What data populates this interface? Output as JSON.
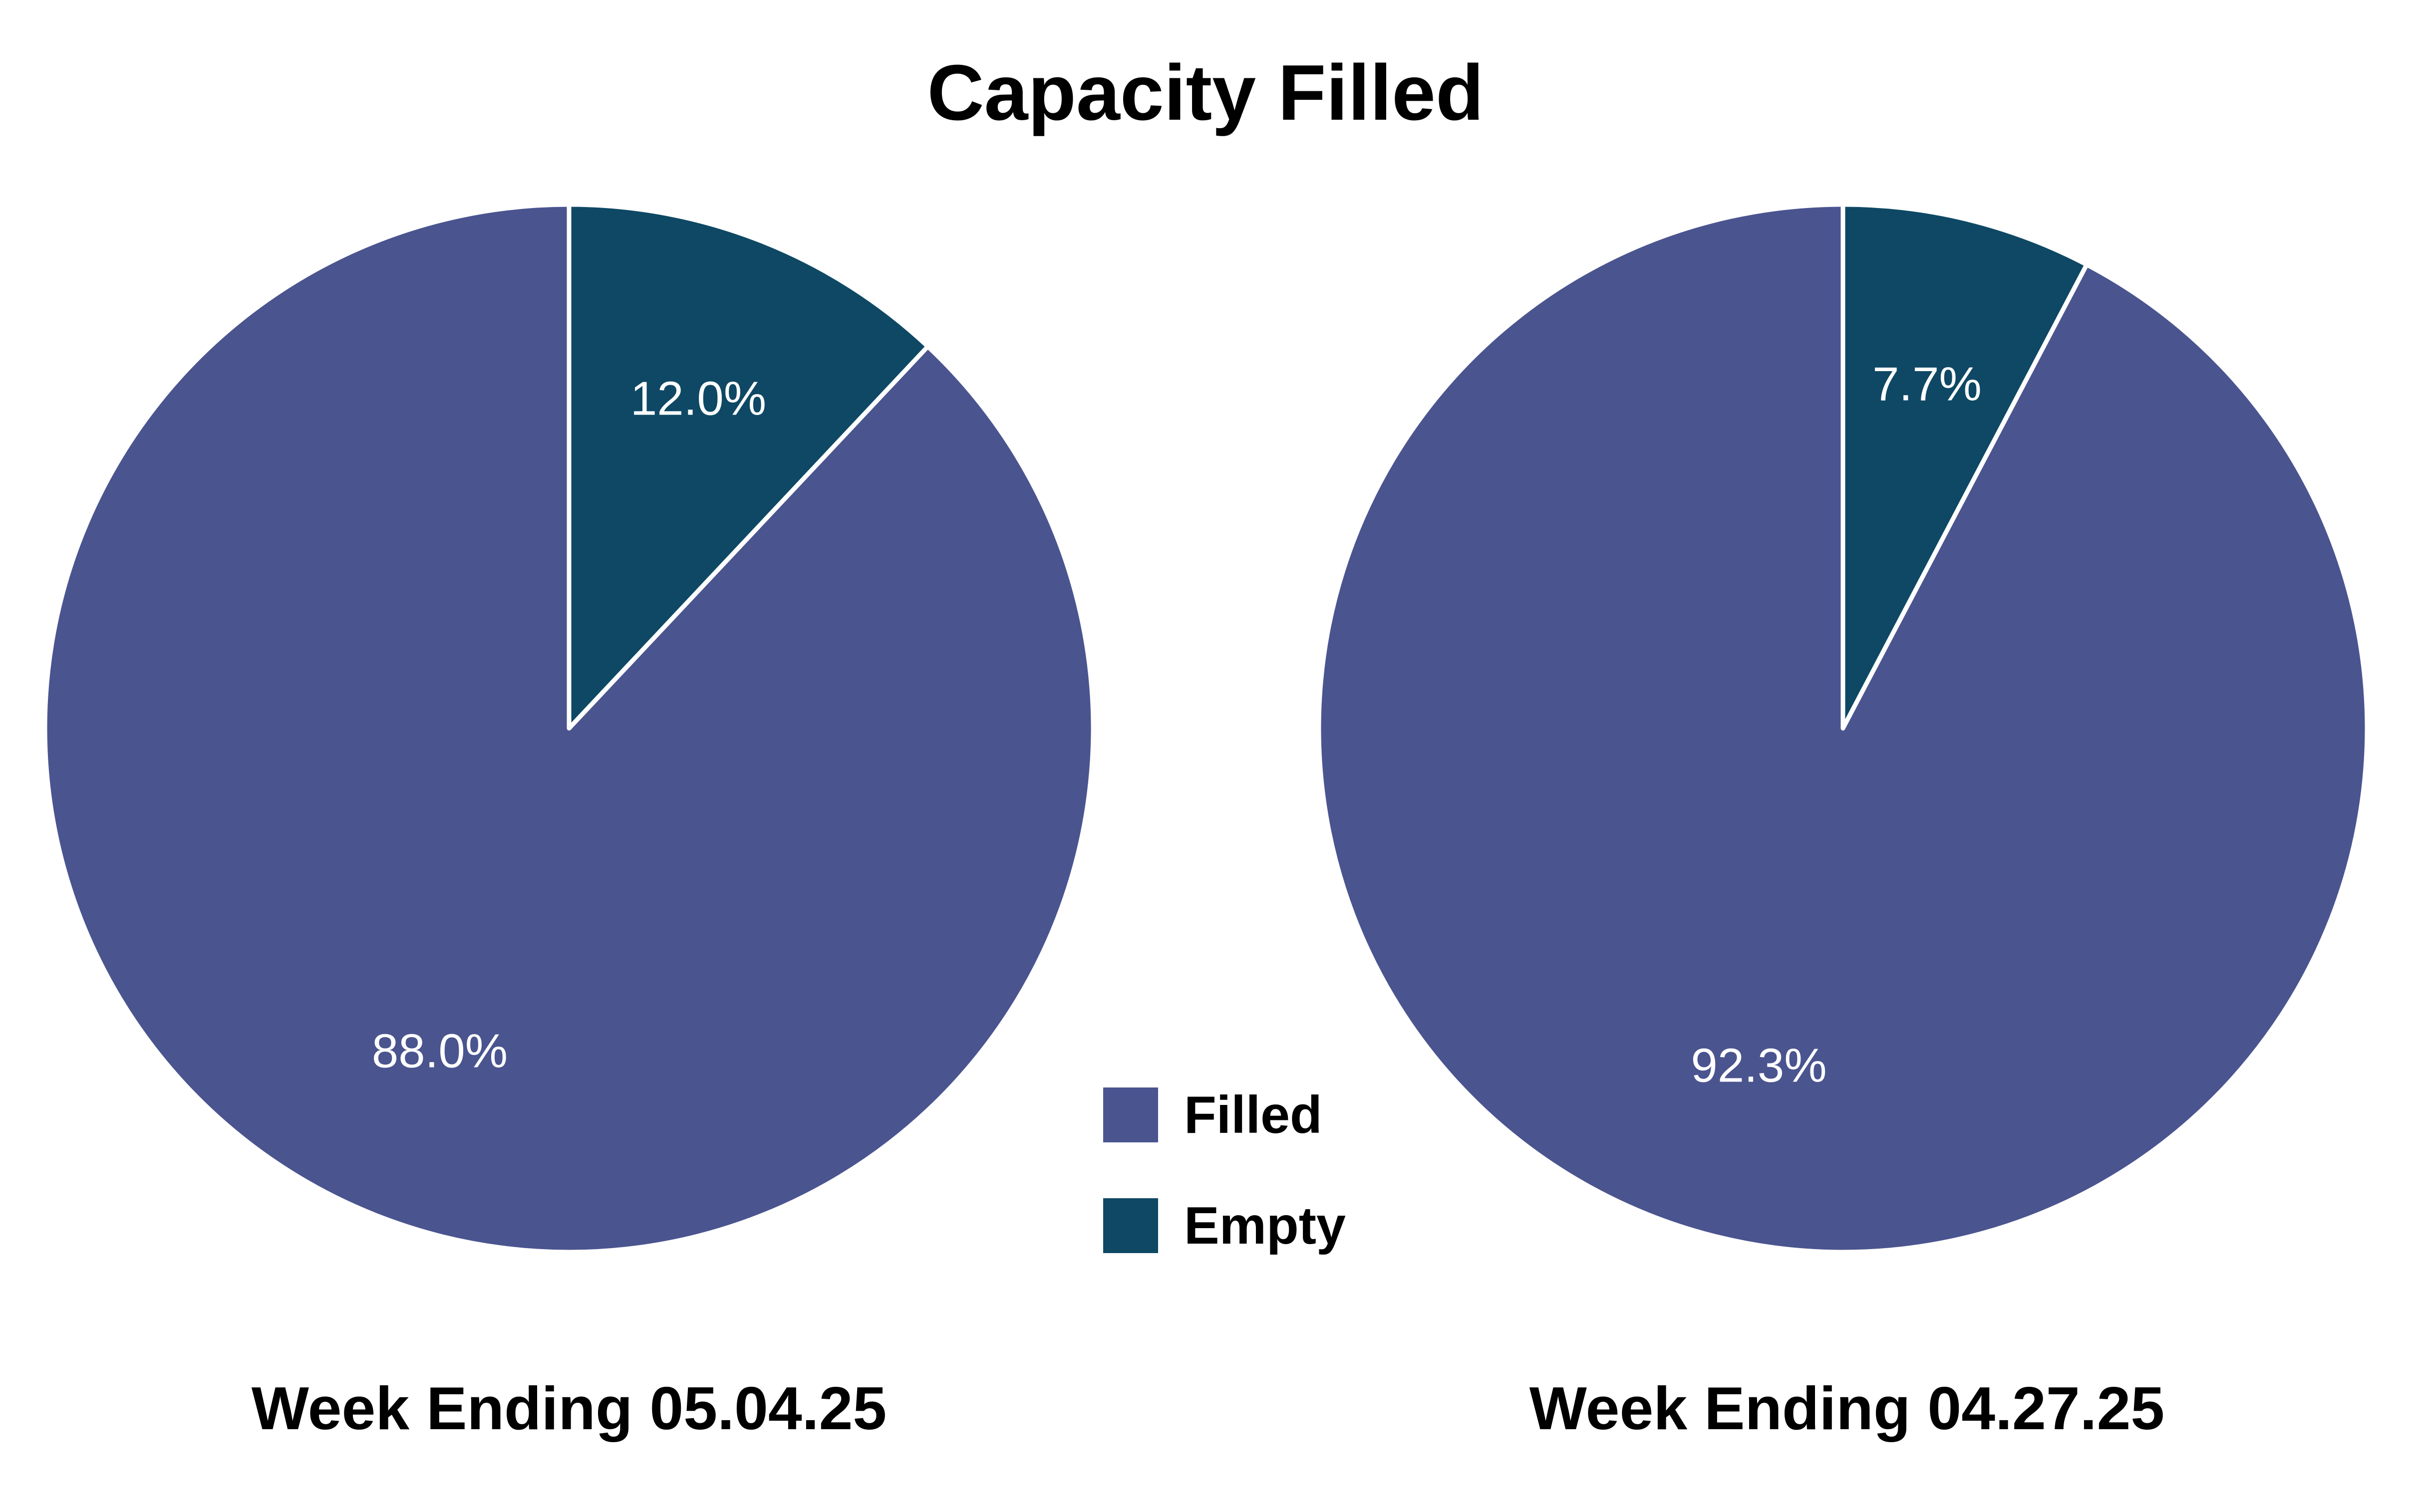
{
  "title": "Capacity Filled",
  "colors": {
    "filled": "#4a548f",
    "empty": "#0e4864",
    "slice_label_text": "#ffffff",
    "title_text": "#000000",
    "background": "#ffffff",
    "slice_separator": "#ffffff"
  },
  "legend": {
    "position": "center-between-pies",
    "items": [
      {
        "label": "Filled",
        "color_key": "filled"
      },
      {
        "label": "Empty",
        "color_key": "empty"
      }
    ]
  },
  "chart_data": [
    {
      "type": "pie",
      "week_label": "Week Ending 05.04.25",
      "start_angle_deg": 0,
      "direction": "clockwise",
      "label_radius_fraction": 0.67,
      "slices": [
        {
          "name": "Empty",
          "value_pct": 12.0,
          "label": "12.0%"
        },
        {
          "name": "Filled",
          "value_pct": 88.0,
          "label": "88.0%"
        }
      ]
    },
    {
      "type": "pie",
      "week_label": "Week Ending 04.27.25",
      "start_angle_deg": 0,
      "direction": "clockwise",
      "label_radius_fraction": 0.67,
      "slices": [
        {
          "name": "Empty",
          "value_pct": 7.7,
          "label": "7.7%"
        },
        {
          "name": "Filled",
          "value_pct": 92.3,
          "label": "92.3%"
        }
      ]
    }
  ]
}
